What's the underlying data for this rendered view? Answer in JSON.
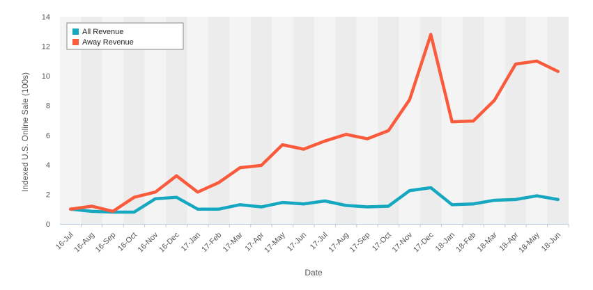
{
  "chart_data": {
    "type": "line",
    "title": "",
    "xlabel": "Date",
    "ylabel": "Indexed U.S. Online Sale (100s)",
    "ylim": [
      0,
      14
    ],
    "yticks": [
      0,
      2,
      4,
      6,
      8,
      10,
      12,
      14
    ],
    "grid": "vertical bands",
    "legend_position": "top-left",
    "categories": [
      "16-Jul",
      "16-Aug",
      "16-Sep",
      "16-Oct",
      "16-Nov",
      "16-Dec",
      "17-Jan",
      "17-Feb",
      "17-Mar",
      "17-Apr",
      "17-May",
      "17-Jun",
      "17-Jul",
      "17-Aug",
      "17-Sep",
      "17-Oct",
      "17-Nov",
      "17-Dec",
      "18-Jan",
      "18-Feb",
      "18-Mar",
      "18-Apr",
      "18-May",
      "18-Jun"
    ],
    "series": [
      {
        "name": "All Revenue",
        "color": "#16a8c0",
        "values": [
          1.0,
          0.85,
          0.8,
          0.8,
          1.7,
          1.8,
          1.0,
          1.0,
          1.3,
          1.15,
          1.45,
          1.35,
          1.55,
          1.25,
          1.15,
          1.2,
          2.25,
          2.45,
          1.3,
          1.35,
          1.6,
          1.65,
          1.9,
          1.65
        ]
      },
      {
        "name": "Away Revenue",
        "color": "#fa5b3c",
        "values": [
          1.0,
          1.2,
          0.85,
          1.8,
          2.15,
          3.25,
          2.15,
          2.8,
          3.8,
          3.95,
          5.35,
          5.05,
          5.6,
          6.05,
          5.75,
          6.3,
          8.4,
          12.8,
          6.9,
          6.95,
          8.35,
          10.8,
          11.0,
          10.3
        ]
      }
    ]
  }
}
